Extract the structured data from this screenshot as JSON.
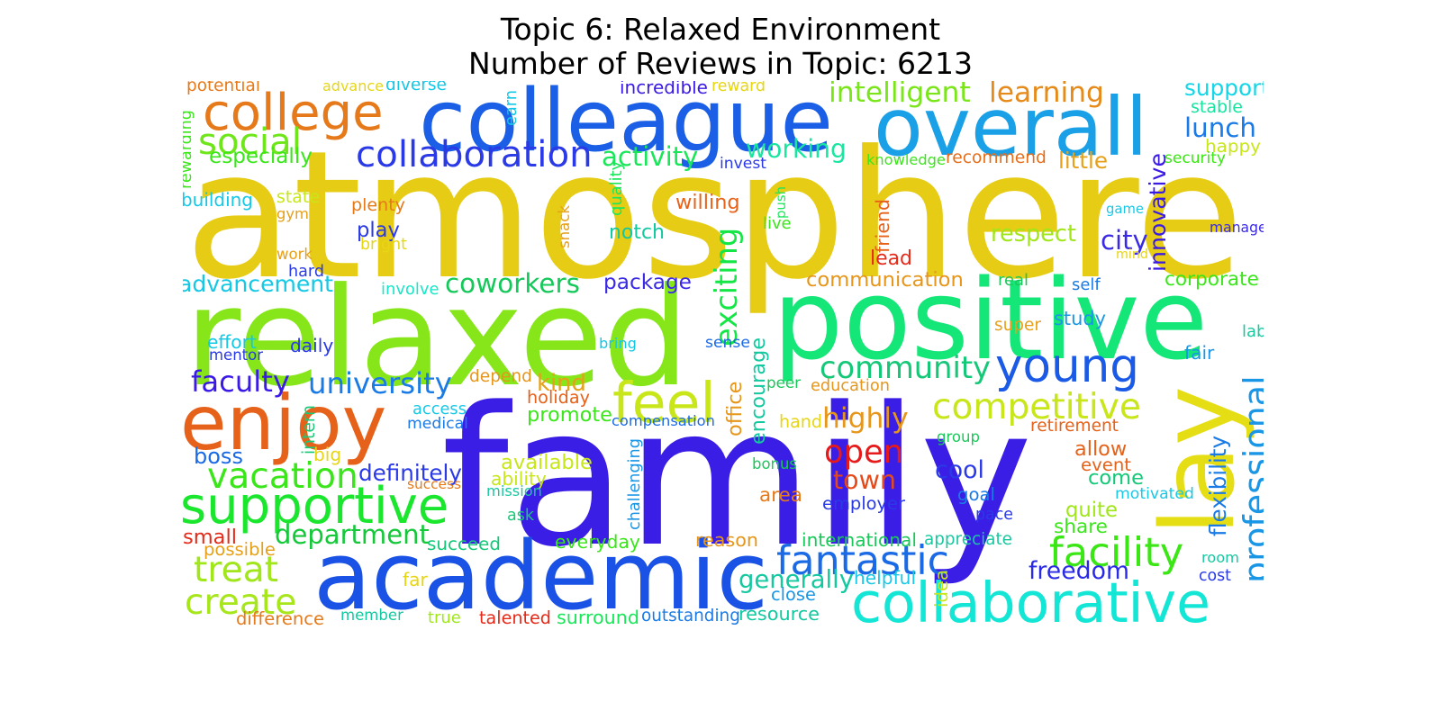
{
  "title_line1": "Topic 6: Relaxed Environment",
  "title_line2": "Number of Reviews in Topic: 6213",
  "words": [
    {
      "text": "atmosphere",
      "color": "#e6cc14"
    },
    {
      "text": "family",
      "color": "#3b1ee6"
    },
    {
      "text": "relaxed",
      "color": "#86e61a"
    },
    {
      "text": "positive",
      "color": "#14e678"
    },
    {
      "text": "colleague",
      "color": "#1a5fe6"
    },
    {
      "text": "academic",
      "color": "#1a52e6"
    },
    {
      "text": "overall",
      "color": "#1aa0e6"
    },
    {
      "text": "enjoy",
      "color": "#e6621a"
    },
    {
      "text": "lay",
      "color": "#e6de14"
    },
    {
      "text": "collaborative",
      "color": "#14e6d6"
    },
    {
      "text": "supportive",
      "color": "#1ae62e"
    },
    {
      "text": "college",
      "color": "#e67a1a"
    },
    {
      "text": "young",
      "color": "#1a5ae6"
    },
    {
      "text": "feel",
      "color": "#c8e61a"
    },
    {
      "text": "professional",
      "color": "#1a96e6"
    },
    {
      "text": "competitive",
      "color": "#c8e61a"
    },
    {
      "text": "community",
      "color": "#14c878"
    },
    {
      "text": "collaboration",
      "color": "#2a3ae6"
    },
    {
      "text": "social",
      "color": "#6ee61a"
    },
    {
      "text": "intelligent",
      "color": "#7ae61a"
    },
    {
      "text": "learning",
      "color": "#e68a1a"
    },
    {
      "text": "support",
      "color": "#14d6e6"
    },
    {
      "text": "lunch",
      "color": "#1a7ae6"
    },
    {
      "text": "fantastic",
      "color": "#1a6ae6"
    },
    {
      "text": "facility",
      "color": "#3ae614"
    },
    {
      "text": "vacation",
      "color": "#3ae61a"
    },
    {
      "text": "open",
      "color": "#e61a1a"
    },
    {
      "text": "create",
      "color": "#a6e61a"
    },
    {
      "text": "treat",
      "color": "#a0e61a"
    },
    {
      "text": "department",
      "color": "#14c83a"
    },
    {
      "text": "exciting",
      "color": "#14e646"
    },
    {
      "text": "coworkers",
      "color": "#14c85a"
    },
    {
      "text": "advancement",
      "color": "#14c8e6"
    },
    {
      "text": "faculty",
      "color": "#3a1ae6"
    },
    {
      "text": "university",
      "color": "#1a7ae6"
    },
    {
      "text": "town",
      "color": "#e64a1a"
    },
    {
      "text": "highly",
      "color": "#e6961a"
    },
    {
      "text": "freedom",
      "color": "#2a2ae6"
    },
    {
      "text": "working",
      "color": "#1ae6a0"
    },
    {
      "text": "activity",
      "color": "#1ae65a"
    },
    {
      "text": "especially",
      "color": "#3ae61a"
    },
    {
      "text": "recommend",
      "color": "#e66e1a"
    },
    {
      "text": "little",
      "color": "#e6a01a"
    },
    {
      "text": "happy",
      "color": "#c8e61a"
    },
    {
      "text": "stable",
      "color": "#14e6a0"
    },
    {
      "text": "security",
      "color": "#3ae614"
    },
    {
      "text": "innovative",
      "color": "#3a1ae6"
    },
    {
      "text": "manager",
      "color": "#3a2ae6"
    },
    {
      "text": "city",
      "color": "#3a2ae6"
    },
    {
      "text": "respect",
      "color": "#a0e61a"
    },
    {
      "text": "corporate",
      "color": "#3ae61a"
    },
    {
      "text": "communication",
      "color": "#e6961a"
    },
    {
      "text": "package",
      "color": "#3a2ae6"
    },
    {
      "text": "notch",
      "color": "#14c8a0"
    },
    {
      "text": "play",
      "color": "#2a3ae6"
    },
    {
      "text": "gym",
      "color": "#e6a01a"
    },
    {
      "text": "plenty",
      "color": "#e67a1a"
    },
    {
      "text": "state",
      "color": "#c8e61a"
    },
    {
      "text": "building",
      "color": "#14c8e6"
    },
    {
      "text": "rewarding",
      "color": "#3ae61a"
    },
    {
      "text": "potential",
      "color": "#e67a1a"
    },
    {
      "text": "advance",
      "color": "#e6d614"
    },
    {
      "text": "diverse",
      "color": "#14c8e6"
    },
    {
      "text": "earn",
      "color": "#14c8e6"
    },
    {
      "text": "incredible",
      "color": "#3a1ae6"
    },
    {
      "text": "reward",
      "color": "#e6d614"
    },
    {
      "text": "invest",
      "color": "#2a3ae6"
    },
    {
      "text": "knowledge",
      "color": "#3ae61a"
    },
    {
      "text": "quality",
      "color": "#1ae65a"
    },
    {
      "text": "snack",
      "color": "#e6a01a"
    },
    {
      "text": "willing",
      "color": "#e6621a"
    },
    {
      "text": "push",
      "color": "#1ae65a"
    },
    {
      "text": "live",
      "color": "#3ae61a"
    },
    {
      "text": "friend",
      "color": "#e6621a"
    },
    {
      "text": "lead",
      "color": "#e62a1a"
    },
    {
      "text": "game",
      "color": "#1ac8e6"
    },
    {
      "text": "mind",
      "color": "#e6d614"
    },
    {
      "text": "work",
      "color": "#e6a01a"
    },
    {
      "text": "bright",
      "color": "#e6d614"
    },
    {
      "text": "hard",
      "color": "#2a3ae6"
    },
    {
      "text": "involve",
      "color": "#1ae6c8"
    },
    {
      "text": "real",
      "color": "#1ac85a"
    },
    {
      "text": "self",
      "color": "#1a7ae6"
    },
    {
      "text": "lab",
      "color": "#1ac8a0"
    },
    {
      "text": "fair",
      "color": "#1a96e6"
    },
    {
      "text": "super",
      "color": "#e6a01a"
    },
    {
      "text": "study",
      "color": "#1a96e6"
    },
    {
      "text": "effort",
      "color": "#14c8e6"
    },
    {
      "text": "daily",
      "color": "#2a3ae6"
    },
    {
      "text": "mentor",
      "color": "#2a3ae6"
    },
    {
      "text": "bring",
      "color": "#14c8e6"
    },
    {
      "text": "sense",
      "color": "#1a6ae6"
    },
    {
      "text": "encourage",
      "color": "#14c8a0"
    },
    {
      "text": "office",
      "color": "#e6961a"
    },
    {
      "text": "peer",
      "color": "#1ac85a"
    },
    {
      "text": "education",
      "color": "#e6961a"
    },
    {
      "text": "depend",
      "color": "#e6961a"
    },
    {
      "text": "kind",
      "color": "#e6a01a"
    },
    {
      "text": "holiday",
      "color": "#e6621a"
    },
    {
      "text": "promote",
      "color": "#3ae61a"
    },
    {
      "text": "compensation",
      "color": "#1a6ae6"
    },
    {
      "text": "hand",
      "color": "#e6d614"
    },
    {
      "text": "retirement",
      "color": "#e6621a"
    },
    {
      "text": "allow",
      "color": "#e6621a"
    },
    {
      "text": "event",
      "color": "#e6621a"
    },
    {
      "text": "group",
      "color": "#1ac85a"
    },
    {
      "text": "flexibility",
      "color": "#1a7ae6"
    },
    {
      "text": "come",
      "color": "#14c878"
    },
    {
      "text": "cool",
      "color": "#2a3ae6"
    },
    {
      "text": "employer",
      "color": "#2a3ae6"
    },
    {
      "text": "area",
      "color": "#e67a1a"
    },
    {
      "text": "bonus",
      "color": "#1ac85a"
    },
    {
      "text": "goal",
      "color": "#1a7ae6"
    },
    {
      "text": "motivated",
      "color": "#1ac8e6"
    },
    {
      "text": "pace",
      "color": "#2a3ae6"
    },
    {
      "text": "quite",
      "color": "#a0e61a"
    },
    {
      "text": "share",
      "color": "#3ae61a"
    },
    {
      "text": "appreciate",
      "color": "#1ac8a0"
    },
    {
      "text": "international",
      "color": "#1ac85a"
    },
    {
      "text": "room",
      "color": "#1ac8a0"
    },
    {
      "text": "cost",
      "color": "#2a3ae6"
    },
    {
      "text": "helpful",
      "color": "#1ac8e6"
    },
    {
      "text": "idea",
      "color": "#c8e61a"
    },
    {
      "text": "generally",
      "color": "#14c8a0"
    },
    {
      "text": "close",
      "color": "#1a96e6"
    },
    {
      "text": "resource",
      "color": "#14c8a0"
    },
    {
      "text": "outstanding",
      "color": "#1a7ae6"
    },
    {
      "text": "surround",
      "color": "#1ae65a"
    },
    {
      "text": "talented",
      "color": "#e62a1a"
    },
    {
      "text": "true",
      "color": "#a0e61a"
    },
    {
      "text": "member",
      "color": "#14c8a0"
    },
    {
      "text": "difference",
      "color": "#e67a1a"
    },
    {
      "text": "far",
      "color": "#e6d614"
    },
    {
      "text": "possible",
      "color": "#e6a01a"
    },
    {
      "text": "small",
      "color": "#e62a1a"
    },
    {
      "text": "boss",
      "color": "#1a6ae6"
    },
    {
      "text": "definitely",
      "color": "#2a3ae6"
    },
    {
      "text": "succeed",
      "color": "#14c878"
    },
    {
      "text": "everyday",
      "color": "#3ae61a"
    },
    {
      "text": "reason",
      "color": "#e6961a"
    },
    {
      "text": "challenging",
      "color": "#1a96e6"
    },
    {
      "text": "available",
      "color": "#c8e61a"
    },
    {
      "text": "ability",
      "color": "#c8e61a"
    },
    {
      "text": "mission",
      "color": "#1ac8a0"
    },
    {
      "text": "ask",
      "color": "#1ac878"
    },
    {
      "text": "success",
      "color": "#e67a1a"
    },
    {
      "text": "access",
      "color": "#1ac8e6"
    },
    {
      "text": "medical",
      "color": "#1a7ae6"
    },
    {
      "text": "intern",
      "color": "#1ac878"
    },
    {
      "text": "big",
      "color": "#e6d614"
    }
  ]
}
